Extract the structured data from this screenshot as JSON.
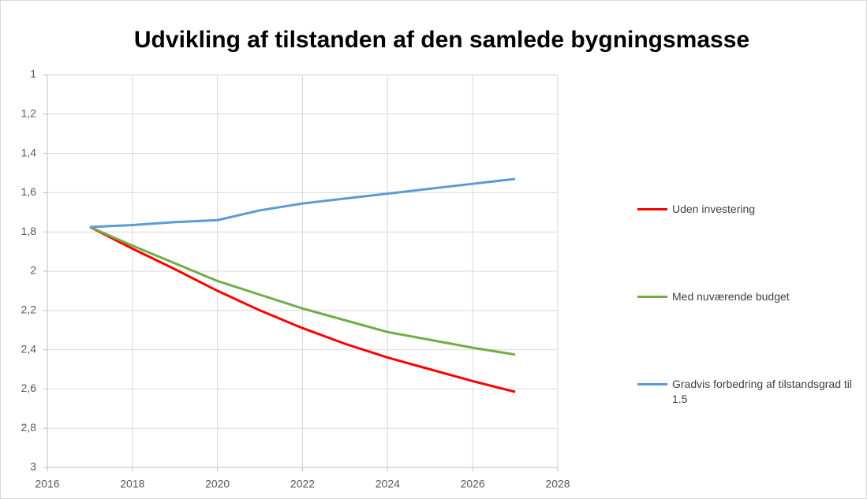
{
  "chart_data": {
    "type": "line",
    "title": "Udvikling af tilstanden af den samlede bygningsmasse",
    "x": [
      2017,
      2018,
      2019,
      2020,
      2021,
      2022,
      2023,
      2024,
      2025,
      2026,
      2027
    ],
    "series": [
      {
        "name": "Uden investering",
        "color": "#ff0000",
        "values": [
          1.775,
          1.885,
          1.99,
          2.1,
          2.2,
          2.29,
          2.37,
          2.44,
          2.5,
          2.56,
          2.615
        ]
      },
      {
        "name": "Med nuværende budget",
        "color": "#70ad47",
        "values": [
          1.775,
          1.87,
          1.96,
          2.05,
          2.12,
          2.19,
          2.25,
          2.31,
          2.35,
          2.39,
          2.425
        ]
      },
      {
        "name": "Gradvis forbedring af tilstandsgrad til 1.5",
        "color": "#5b9bd5",
        "values": [
          1.775,
          1.765,
          1.75,
          1.74,
          1.69,
          1.655,
          1.63,
          1.605,
          1.58,
          1.555,
          1.53
        ]
      }
    ],
    "xlim": [
      2016,
      2028
    ],
    "xticks": [
      2016,
      2018,
      2020,
      2022,
      2024,
      2026,
      2028
    ],
    "ylim": [
      1,
      3
    ],
    "yticks": [
      1,
      {
        "value": 1.2,
        "label": "1,2"
      },
      {
        "value": 1.4,
        "label": "1,4"
      },
      {
        "value": 1.6,
        "label": "1,6"
      },
      {
        "value": 1.8,
        "label": "1,8"
      },
      2,
      {
        "value": 2.2,
        "label": "2,2"
      },
      {
        "value": 2.4,
        "label": "2,4"
      },
      {
        "value": 2.6,
        "label": "2,6"
      },
      {
        "value": 2.8,
        "label": "2,8"
      },
      3
    ],
    "y_inverted": true,
    "grid": true,
    "legend": "right"
  }
}
